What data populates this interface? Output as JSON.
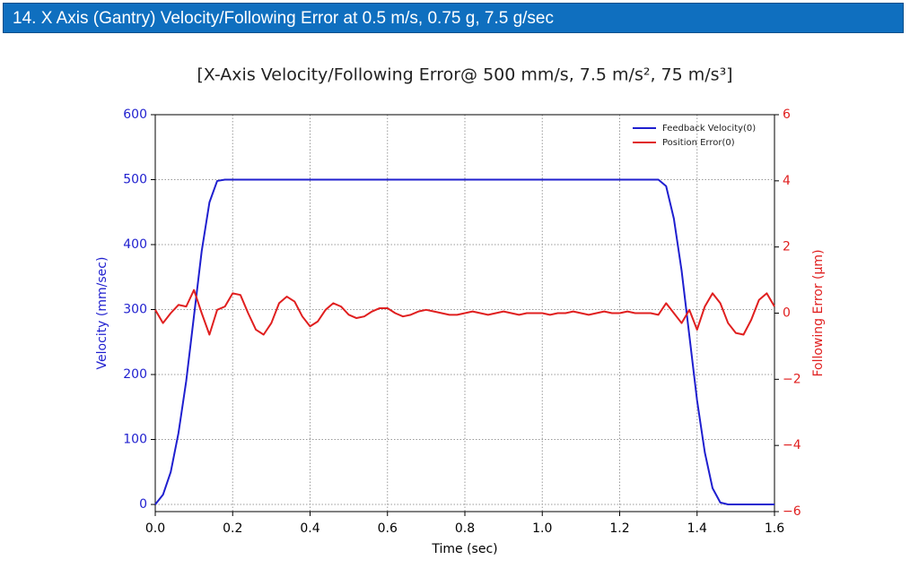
{
  "header": {
    "title": "14. X Axis (Gantry) Velocity/Following Error at 0.5 m/s, 0.75 g, 7.5 g/sec"
  },
  "chart_data": {
    "type": "line",
    "title": "[X-Axis Velocity/Following Error@ 500 mm/s, 7.5 m/s², 75 m/s³]",
    "xlabel": "Time (sec)",
    "ylabel": "Velocity (mm/sec)",
    "y2label": "Following Error (µm)",
    "x": [
      0,
      0.02,
      0.04,
      0.06,
      0.08,
      0.1,
      0.12,
      0.14,
      0.16,
      0.18,
      0.2,
      0.22,
      0.24,
      0.26,
      0.28,
      0.3,
      0.32,
      0.34,
      0.36,
      0.38,
      0.4,
      0.42,
      0.44,
      0.46,
      0.48,
      0.5,
      0.52,
      0.54,
      0.56,
      0.58,
      0.6,
      0.62,
      0.64,
      0.66,
      0.68,
      0.7,
      0.72,
      0.74,
      0.76,
      0.78,
      0.8,
      0.82,
      0.84,
      0.86,
      0.88,
      0.9,
      0.92,
      0.94,
      0.96,
      0.98,
      1,
      1.02,
      1.04,
      1.06,
      1.08,
      1.1,
      1.12,
      1.14,
      1.16,
      1.18,
      1.2,
      1.22,
      1.24,
      1.26,
      1.28,
      1.3,
      1.32,
      1.34,
      1.36,
      1.38,
      1.4,
      1.42,
      1.44,
      1.46,
      1.48,
      1.5,
      1.52,
      1.54,
      1.56,
      1.58,
      1.6
    ],
    "series": [
      {
        "name": "Feedback Velocity(0)",
        "color": "#1f1fcf",
        "axis": "y",
        "values": [
          0,
          15,
          50,
          110,
          190,
          290,
          390,
          465,
          498,
          500,
          500,
          500,
          500,
          500,
          500,
          500,
          500,
          500,
          500,
          500,
          500,
          500,
          500,
          500,
          500,
          500,
          500,
          500,
          500,
          500,
          500,
          500,
          500,
          500,
          500,
          500,
          500,
          500,
          500,
          500,
          500,
          500,
          500,
          500,
          500,
          500,
          500,
          500,
          500,
          500,
          500,
          500,
          500,
          500,
          500,
          500,
          500,
          500,
          500,
          500,
          500,
          500,
          500,
          500,
          500,
          500,
          490,
          440,
          360,
          260,
          160,
          80,
          25,
          3,
          0,
          0,
          0,
          0,
          0,
          0,
          0
        ]
      },
      {
        "name": "Position Error(0)",
        "color": "#e01f1f",
        "axis": "y2",
        "values": [
          0.1,
          -0.3,
          0,
          0.25,
          0.2,
          0.7,
          0,
          -0.65,
          0.1,
          0.2,
          0.6,
          0.55,
          0,
          -0.5,
          -0.65,
          -0.3,
          0.3,
          0.5,
          0.35,
          -0.1,
          -0.4,
          -0.25,
          0.1,
          0.3,
          0.2,
          -0.05,
          -0.15,
          -0.1,
          0.05,
          0.15,
          0.15,
          0,
          -0.1,
          -0.05,
          0.05,
          0.1,
          0.05,
          0,
          -0.05,
          -0.05,
          0,
          0.05,
          0,
          -0.05,
          0,
          0.05,
          0,
          -0.05,
          0,
          0,
          0,
          -0.05,
          0,
          0,
          0.05,
          0,
          -0.05,
          0,
          0.05,
          0,
          0,
          0.05,
          0,
          0,
          0,
          -0.05,
          0.3,
          0,
          -0.3,
          0.1,
          -0.5,
          0.2,
          0.6,
          0.3,
          -0.3,
          -0.6,
          -0.65,
          -0.2,
          0.4,
          0.6,
          0.2
        ]
      }
    ],
    "xlim": [
      0,
      1.6
    ],
    "xticks": [
      {
        "value": 0,
        "label": "0.0"
      },
      0.2,
      0.4,
      0.6,
      0.8,
      {
        "value": 1,
        "label": "1.0"
      },
      1.2,
      1.4,
      1.6
    ],
    "ylim": [
      -11,
      600
    ],
    "yticks": [
      0,
      100,
      200,
      300,
      400,
      500,
      600
    ],
    "y2lim": [
      -6,
      6
    ],
    "y2ticks": [
      {
        "value": -6,
        "label": "−6"
      },
      {
        "value": -4,
        "label": "−4"
      },
      {
        "value": -2,
        "label": "−2"
      },
      0,
      2,
      4,
      6
    ],
    "grid": true,
    "legend": "upper right",
    "ycolor": "#1f1fcf",
    "y2color": "#e01f1f"
  }
}
